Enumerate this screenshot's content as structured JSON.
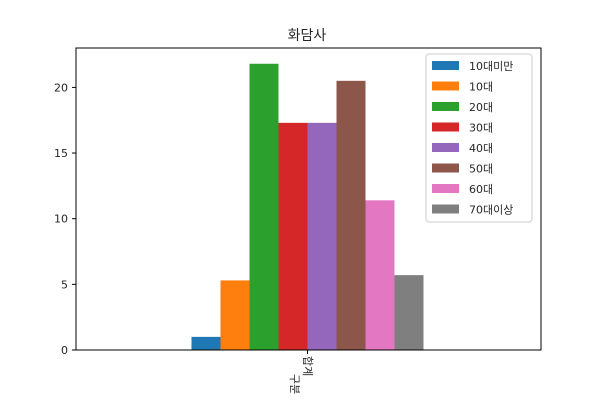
{
  "chart_data": {
    "type": "bar",
    "title": "화담사",
    "xlabel": "",
    "ylabel": "",
    "categories": [
      "합계"
    ],
    "category_group_label": "구분",
    "ylim": [
      0,
      23
    ],
    "yticks": [
      0,
      5,
      10,
      15,
      20
    ],
    "grid": false,
    "legend_position": "top-right",
    "series": [
      {
        "name": "10대미만",
        "color": "#1f77b4",
        "values": [
          1
        ]
      },
      {
        "name": "10대",
        "color": "#ff7f0e",
        "values": [
          5.3
        ]
      },
      {
        "name": "20대",
        "color": "#2ca02c",
        "values": [
          21.8
        ]
      },
      {
        "name": "30대",
        "color": "#d62728",
        "values": [
          17.3
        ]
      },
      {
        "name": "40대",
        "color": "#9467bd",
        "values": [
          17.3
        ]
      },
      {
        "name": "50대",
        "color": "#8c564b",
        "values": [
          20.5
        ]
      },
      {
        "name": "60대",
        "color": "#e377c2",
        "values": [
          11.4
        ]
      },
      {
        "name": "70대이상",
        "color": "#7f7f7f",
        "values": [
          5.7
        ]
      }
    ]
  }
}
